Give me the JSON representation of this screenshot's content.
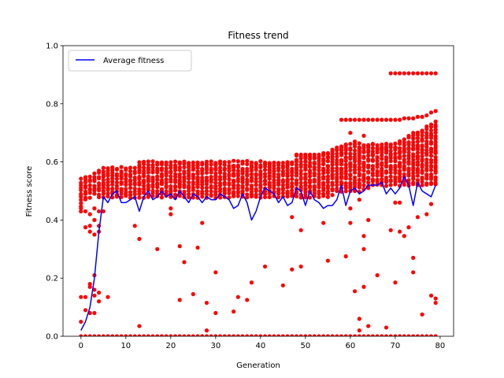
{
  "chart_data": {
    "type": "scatter",
    "title": "Fitness trend",
    "xlabel": "Generation",
    "ylabel": "Fitness score",
    "xlim": [
      -4,
      83
    ],
    "ylim": [
      0,
      1
    ],
    "xticks": [
      0,
      10,
      20,
      30,
      40,
      50,
      60,
      70,
      80
    ],
    "yticks": [
      0.0,
      0.2,
      0.4,
      0.6,
      0.8,
      1.0
    ],
    "xtick_labels": [
      "0",
      "10",
      "20",
      "30",
      "40",
      "50",
      "60",
      "70",
      "80"
    ],
    "ytick_labels": [
      "0.0",
      "0.2",
      "0.4",
      "0.6",
      "0.8",
      "1.0"
    ],
    "legend": {
      "placement": "top-left",
      "entries": [
        "Average fitness"
      ]
    },
    "grid": false,
    "colors": {
      "individuals": "#ff0000",
      "average": "#0000ff"
    },
    "series": [
      {
        "name": "Average fitness",
        "kind": "line",
        "x": [
          0,
          1,
          2,
          3,
          4,
          5,
          6,
          7,
          8,
          9,
          10,
          11,
          12,
          13,
          14,
          15,
          16,
          17,
          18,
          19,
          20,
          21,
          22,
          23,
          24,
          25,
          26,
          27,
          28,
          29,
          30,
          31,
          32,
          33,
          34,
          35,
          36,
          37,
          38,
          39,
          40,
          41,
          42,
          43,
          44,
          45,
          46,
          47,
          48,
          49,
          50,
          51,
          52,
          53,
          54,
          55,
          56,
          57,
          58,
          59,
          60,
          61,
          62,
          63,
          64,
          65,
          66,
          67,
          68,
          69,
          70,
          71,
          72,
          73,
          74,
          75,
          76,
          77,
          78,
          79
        ],
        "y": [
          0.02,
          0.05,
          0.1,
          0.2,
          0.36,
          0.48,
          0.46,
          0.49,
          0.5,
          0.46,
          0.46,
          0.47,
          0.48,
          0.43,
          0.48,
          0.5,
          0.47,
          0.48,
          0.5,
          0.48,
          0.49,
          0.47,
          0.5,
          0.48,
          0.46,
          0.49,
          0.48,
          0.46,
          0.48,
          0.47,
          0.47,
          0.49,
          0.48,
          0.47,
          0.44,
          0.45,
          0.49,
          0.46,
          0.4,
          0.43,
          0.48,
          0.51,
          0.5,
          0.49,
          0.46,
          0.48,
          0.45,
          0.46,
          0.51,
          0.5,
          0.45,
          0.5,
          0.47,
          0.46,
          0.44,
          0.45,
          0.45,
          0.47,
          0.52,
          0.45,
          0.5,
          0.51,
          0.49,
          0.5,
          0.52,
          0.52,
          0.52,
          0.53,
          0.49,
          0.51,
          0.49,
          0.51,
          0.55,
          0.52,
          0.45,
          0.53,
          0.5,
          0.49,
          0.48,
          0.52
        ]
      },
      {
        "name": "",
        "kind": "scatter-band",
        "x": [
          0,
          1,
          2,
          3,
          4,
          5,
          6,
          7,
          8,
          9,
          10,
          11,
          12,
          13,
          14,
          15,
          16,
          17,
          18,
          19,
          20,
          21,
          22,
          23,
          24,
          25,
          26,
          27,
          28,
          29,
          30,
          31,
          32,
          33,
          34,
          35,
          36,
          37,
          38,
          39,
          40,
          41,
          42,
          43,
          44,
          45,
          46,
          47,
          48,
          49,
          50,
          51,
          52,
          53,
          54,
          55,
          56,
          57,
          58,
          59,
          60,
          61,
          62,
          63,
          64,
          65,
          66,
          67,
          68,
          69,
          70,
          71,
          72,
          73,
          74,
          75,
          76,
          77,
          78,
          79
        ],
        "band_low": [
          0.43,
          0.47,
          0.48,
          0.49,
          0.48,
          0.48,
          0.48,
          0.48,
          0.48,
          0.48,
          0.48,
          0.48,
          0.48,
          0.48,
          0.48,
          0.48,
          0.48,
          0.48,
          0.48,
          0.48,
          0.48,
          0.48,
          0.48,
          0.48,
          0.48,
          0.48,
          0.48,
          0.48,
          0.48,
          0.48,
          0.48,
          0.48,
          0.48,
          0.48,
          0.48,
          0.48,
          0.48,
          0.48,
          0.48,
          0.48,
          0.48,
          0.48,
          0.48,
          0.48,
          0.48,
          0.48,
          0.48,
          0.48,
          0.48,
          0.48,
          0.48,
          0.48,
          0.48,
          0.48,
          0.48,
          0.48,
          0.49,
          0.5,
          0.5,
          0.5,
          0.5,
          0.5,
          0.5,
          0.51,
          0.51,
          0.52,
          0.52,
          0.52,
          0.52,
          0.52,
          0.52,
          0.52,
          0.52,
          0.52,
          0.52,
          0.52,
          0.52,
          0.52,
          0.52,
          0.52
        ],
        "band_high": [
          0.54,
          0.55,
          0.55,
          0.56,
          0.57,
          0.58,
          0.58,
          0.58,
          0.58,
          0.58,
          0.58,
          0.58,
          0.58,
          0.6,
          0.6,
          0.6,
          0.6,
          0.6,
          0.6,
          0.6,
          0.6,
          0.6,
          0.6,
          0.6,
          0.6,
          0.6,
          0.6,
          0.6,
          0.6,
          0.6,
          0.6,
          0.6,
          0.6,
          0.6,
          0.6,
          0.6,
          0.6,
          0.6,
          0.6,
          0.6,
          0.6,
          0.6,
          0.6,
          0.6,
          0.6,
          0.6,
          0.6,
          0.6,
          0.62,
          0.62,
          0.62,
          0.62,
          0.62,
          0.62,
          0.62,
          0.63,
          0.64,
          0.65,
          0.65,
          0.66,
          0.66,
          0.66,
          0.66,
          0.66,
          0.66,
          0.66,
          0.66,
          0.66,
          0.66,
          0.66,
          0.66,
          0.67,
          0.68,
          0.69,
          0.7,
          0.7,
          0.71,
          0.72,
          0.73,
          0.74
        ],
        "band_spacing": 0.01,
        "note_band": "each generation has points spread densely between band_low and band_high"
      },
      {
        "name": "",
        "kind": "scatter",
        "points": [
          [
            0,
            0.05
          ],
          [
            0,
            0.135
          ],
          [
            0,
            0.43
          ],
          [
            0,
            0.49
          ],
          [
            1,
            0.09
          ],
          [
            1,
            0.135
          ],
          [
            1,
            0.375
          ],
          [
            1,
            0.43
          ],
          [
            1,
            0.53
          ],
          [
            2,
            0.08
          ],
          [
            2,
            0.18
          ],
          [
            2,
            0.17
          ],
          [
            2,
            0.36
          ],
          [
            2,
            0.38
          ],
          [
            2,
            0.42
          ],
          [
            3,
            0.21
          ],
          [
            3,
            0.16
          ],
          [
            3,
            0.14
          ],
          [
            3,
            0.08
          ],
          [
            3,
            0.35
          ],
          [
            3,
            0.4
          ],
          [
            3,
            0.44
          ],
          [
            4,
            0.12
          ],
          [
            4,
            0.15
          ],
          [
            4,
            0.43
          ],
          [
            4,
            0.38
          ],
          [
            4,
            0.36
          ],
          [
            5,
            0.51
          ],
          [
            5,
            0.43
          ],
          [
            6,
            0.135
          ],
          [
            12,
            0.38
          ],
          [
            13,
            0.335
          ],
          [
            13,
            0.035
          ],
          [
            17,
            0.3
          ],
          [
            20,
            0.42
          ],
          [
            20,
            0.44
          ],
          [
            22,
            0.125
          ],
          [
            22,
            0.31
          ],
          [
            23,
            0.255
          ],
          [
            25,
            0.145
          ],
          [
            26,
            0.305
          ],
          [
            27,
            0.39
          ],
          [
            28,
            0.115
          ],
          [
            28,
            0.02
          ],
          [
            30,
            0.22
          ],
          [
            30,
            0.08
          ],
          [
            34,
            0.085
          ],
          [
            35,
            0.135
          ],
          [
            37,
            0.125
          ],
          [
            38,
            0.185
          ],
          [
            41,
            0.24
          ],
          [
            45,
            0.175
          ],
          [
            47,
            0.23
          ],
          [
            47,
            0.41
          ],
          [
            49,
            0.365
          ],
          [
            49,
            0.24
          ],
          [
            51,
            0.5
          ],
          [
            54,
            0.39
          ],
          [
            55,
            0.26
          ],
          [
            58,
            0.56
          ],
          [
            58,
            0.53
          ],
          [
            59,
            0.275
          ],
          [
            60,
            0.44
          ],
          [
            60,
            0.39
          ],
          [
            61,
            0.155
          ],
          [
            62,
            0.47
          ],
          [
            62,
            0.02
          ],
          [
            62,
            0.06
          ],
          [
            63,
            0.345
          ],
          [
            63,
            0.3
          ],
          [
            63,
            0.17
          ],
          [
            64,
            0.035
          ],
          [
            64,
            0.4
          ],
          [
            66,
            0.21
          ],
          [
            68,
            0.03
          ],
          [
            69,
            0.365
          ],
          [
            70,
            0.46
          ],
          [
            70,
            0.185
          ],
          [
            71,
            0.36
          ],
          [
            71,
            0.46
          ],
          [
            72,
            0.345
          ],
          [
            73,
            0.375
          ],
          [
            74,
            0.27
          ],
          [
            74,
            0.22
          ],
          [
            75,
            0.41
          ],
          [
            76,
            0.075
          ],
          [
            77,
            0.42
          ],
          [
            78,
            0.14
          ],
          [
            78,
            0.455
          ],
          [
            79,
            0.115
          ],
          [
            79,
            0.13
          ],
          [
            58,
            0.65
          ],
          [
            58,
            0.63
          ],
          [
            59,
            0.66
          ],
          [
            60,
            0.7
          ],
          [
            61,
            0.67
          ],
          [
            62,
            0.645
          ],
          [
            63,
            0.69
          ],
          [
            64,
            0.65
          ],
          [
            65,
            0.66
          ],
          [
            66,
            0.64
          ],
          [
            67,
            0.65
          ],
          [
            68,
            0.645
          ],
          [
            69,
            0.66
          ],
          [
            70,
            0.65
          ],
          [
            72,
            0.64
          ],
          [
            73,
            0.66
          ],
          [
            74,
            0.68
          ],
          [
            75,
            0.62
          ],
          [
            76,
            0.64
          ],
          [
            77,
            0.63
          ],
          [
            78,
            0.69
          ],
          [
            79,
            0.63
          ],
          [
            58,
            0.745
          ],
          [
            59,
            0.745
          ],
          [
            60,
            0.745
          ],
          [
            61,
            0.745
          ],
          [
            62,
            0.745
          ],
          [
            63,
            0.745
          ],
          [
            64,
            0.745
          ],
          [
            65,
            0.745
          ],
          [
            66,
            0.745
          ],
          [
            67,
            0.745
          ],
          [
            68,
            0.745
          ],
          [
            69,
            0.745
          ],
          [
            70,
            0.745
          ],
          [
            71,
            0.745
          ],
          [
            72,
            0.75
          ],
          [
            73,
            0.75
          ],
          [
            74,
            0.75
          ],
          [
            75,
            0.755
          ],
          [
            76,
            0.755
          ],
          [
            77,
            0.76
          ],
          [
            78,
            0.77
          ],
          [
            79,
            0.775
          ],
          [
            69,
            0.905
          ],
          [
            70,
            0.905
          ],
          [
            71,
            0.905
          ],
          [
            72,
            0.905
          ],
          [
            73,
            0.905
          ],
          [
            74,
            0.905
          ],
          [
            75,
            0.905
          ],
          [
            76,
            0.905
          ],
          [
            77,
            0.905
          ],
          [
            78,
            0.905
          ],
          [
            79,
            0.905
          ],
          [
            48,
            0.625
          ],
          [
            49,
            0.625
          ],
          [
            50,
            0.625
          ],
          [
            51,
            0.625
          ],
          [
            52,
            0.625
          ],
          [
            53,
            0.625
          ],
          [
            54,
            0.63
          ],
          [
            55,
            0.63
          ],
          [
            56,
            0.635
          ],
          [
            57,
            0.64
          ],
          [
            58,
            0.64
          ]
        ]
      },
      {
        "name": "",
        "kind": "zero-row",
        "x_start": 0,
        "x_end": 79,
        "y": 0.0
      }
    ]
  }
}
